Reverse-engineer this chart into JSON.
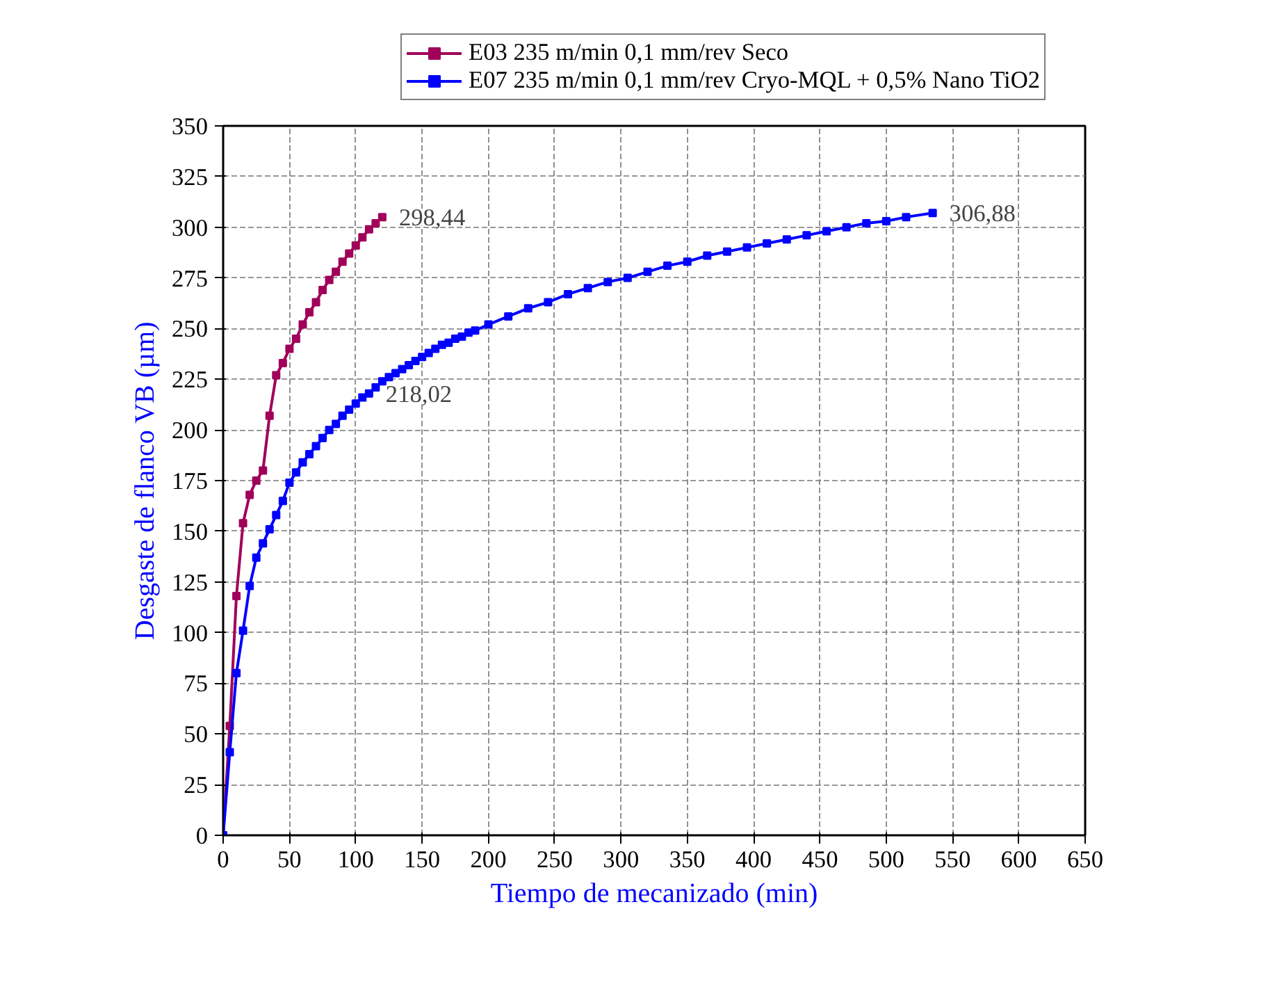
{
  "chart_data": {
    "type": "line",
    "xlabel": "Tiempo de mecanizado (min)",
    "ylabel": "Desgaste de flanco VB (µm)",
    "xlim": [
      0,
      650
    ],
    "xticks": [
      0,
      50,
      100,
      150,
      200,
      250,
      300,
      350,
      400,
      450,
      500,
      550,
      600,
      650
    ],
    "ylim": [
      0,
      350
    ],
    "yticks": [
      0,
      25,
      50,
      75,
      100,
      125,
      150,
      175,
      200,
      225,
      250,
      275,
      300,
      325,
      350
    ],
    "grid": true,
    "legend": "top",
    "marker": "square",
    "line_style": "solid",
    "series": [
      {
        "name": "E03 235 m/min 0,1 mm/rev Seco",
        "color": "#a0005a",
        "x": [
          0,
          5,
          10,
          15,
          20,
          25,
          30,
          35,
          40,
          45,
          50,
          55,
          60,
          65,
          70,
          75,
          80,
          85,
          90,
          95,
          100,
          105,
          110,
          115,
          120
        ],
        "values": [
          0,
          54,
          118,
          154,
          168,
          175,
          180,
          207,
          227,
          233,
          240,
          245,
          252,
          258,
          263,
          269,
          274,
          278,
          283,
          287,
          291,
          295,
          299,
          302,
          305
        ]
      },
      {
        "name": "E07 235 m/min 0,1 mm/rev Cryo-MQL + 0,5% Nano TiO2",
        "color": "#0000ff",
        "x": [
          0,
          5,
          10,
          15,
          20,
          25,
          30,
          35,
          40,
          45,
          50,
          55,
          60,
          65,
          70,
          75,
          80,
          85,
          90,
          95,
          100,
          105,
          110,
          115,
          120,
          125,
          130,
          135,
          140,
          145,
          150,
          155,
          160,
          165,
          170,
          175,
          180,
          185,
          190,
          200,
          215,
          230,
          245,
          260,
          275,
          290,
          305,
          320,
          335,
          350,
          365,
          380,
          395,
          410,
          425,
          440,
          455,
          470,
          485,
          500,
          515,
          535
        ],
        "values": [
          0,
          41,
          80,
          101,
          123,
          137,
          144,
          151,
          158,
          165,
          174,
          179,
          184,
          188,
          192,
          196,
          200,
          203,
          207,
          210,
          213,
          216,
          218,
          221,
          224,
          226,
          228,
          230,
          232,
          234,
          236,
          238,
          240,
          242,
          243,
          245,
          246,
          248,
          249,
          252,
          256,
          260,
          263,
          267,
          270,
          273,
          275,
          278,
          281,
          283,
          286,
          288,
          290,
          292,
          294,
          296,
          298,
          300,
          302,
          303,
          305,
          307
        ]
      }
    ],
    "annotations": [
      {
        "text": "298,44",
        "x": 120,
        "y": 305
      },
      {
        "text": "218,02",
        "x": 110,
        "y": 218
      },
      {
        "text": "306,88",
        "x": 535,
        "y": 307
      }
    ]
  }
}
